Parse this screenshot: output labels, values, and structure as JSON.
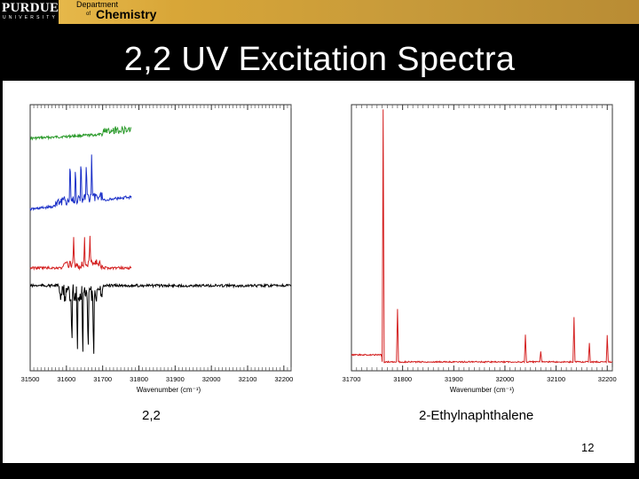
{
  "header": {
    "logo_main": "PURDUE",
    "logo_sub": "UNIVERSITY",
    "dept_line1": "Department",
    "dept_of": "of",
    "dept_name": "Chemistry"
  },
  "slide": {
    "title": "2,2 UV Excitation Spectra",
    "slide_number": "12"
  },
  "captions": {
    "left": "2,2",
    "right": "2-Ethylnaphthalene"
  },
  "chart_data": [
    {
      "type": "line",
      "xlabel": "Wavenumber (cm⁻¹)",
      "ylabel": "",
      "x_ticks": [
        31500,
        31600,
        31700,
        31800,
        31900,
        32000,
        32100,
        32200
      ],
      "xlim": [
        31500,
        32220
      ],
      "grid": false,
      "series": [
        {
          "color": "#2a9a2a",
          "x": [
            31500,
            31640,
            31700,
            31760,
            31780
          ],
          "note_peak_x": [
            31735
          ]
        },
        {
          "color": "#1a2fc8",
          "x": [
            31500,
            31600,
            31630,
            31660,
            31700,
            31780
          ],
          "note_peak_x": [
            31610,
            31625,
            31640,
            31655,
            31670
          ]
        },
        {
          "color": "#d42020",
          "x": [
            31500,
            31600,
            31620,
            31660,
            31780
          ],
          "note_peak_x": [
            31620,
            31650,
            31665
          ]
        },
        {
          "color": "#000000",
          "x": [
            31500,
            31600,
            31700,
            32220
          ],
          "note_peak_x": [
            31615,
            31630,
            31645,
            31660,
            31675
          ]
        }
      ]
    },
    {
      "type": "line",
      "xlabel": "Wavenumber (cm⁻¹)",
      "ylabel": "",
      "x_ticks": [
        31700,
        31800,
        31900,
        32000,
        32100,
        32200
      ],
      "xlim": [
        31700,
        32210
      ],
      "grid": false,
      "series": [
        {
          "color": "#d42020",
          "x": [
            31700,
            31762,
            31790,
            32040,
            32070,
            32135,
            32165,
            32200
          ],
          "note_peak_x": [
            31762,
            31790,
            32040,
            32070,
            32135,
            32165,
            32200
          ]
        }
      ]
    }
  ]
}
